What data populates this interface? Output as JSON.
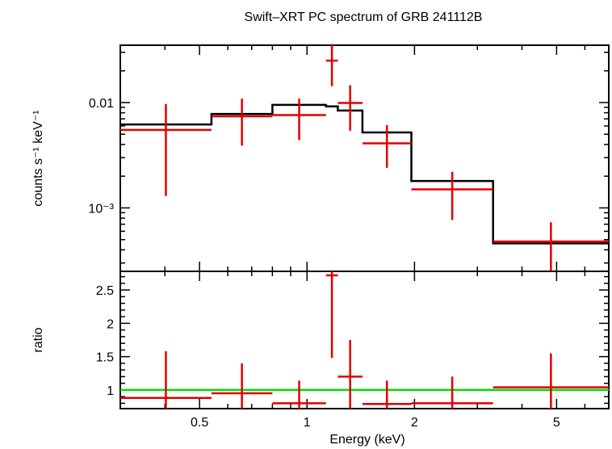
{
  "title": "Swift–XRT PC spectrum of GRB 241112B",
  "colors": {
    "data": "#e00000",
    "model": "#000000",
    "unity": "#00dd00",
    "axes": "#000000"
  },
  "chart_data": [
    {
      "type": "scatter",
      "panel": "spectrum",
      "xscale": "log",
      "yscale": "log",
      "xlim": [
        0.3,
        7.0
      ],
      "ylim": [
        0.00025,
        0.035
      ],
      "ylabel": "counts s⁻¹ keV⁻¹",
      "ytick_labels": [
        {
          "value": 0.01,
          "label": "0.01"
        },
        {
          "value": 0.001,
          "label": "10⁻³"
        }
      ],
      "data_series": {
        "name": "",
        "points": [
          {
            "xlo": 0.3,
            "xhi": 0.54,
            "y": 0.0055,
            "ylo": 0.0013,
            "yhi": 0.0097
          },
          {
            "xlo": 0.54,
            "xhi": 0.8,
            "y": 0.0074,
            "ylo": 0.0039,
            "yhi": 0.0109
          },
          {
            "xlo": 0.8,
            "xhi": 1.13,
            "y": 0.0076,
            "ylo": 0.0044,
            "yhi": 0.0109
          },
          {
            "xlo": 1.13,
            "xhi": 1.22,
            "y": 0.025,
            "ylo": 0.0143,
            "yhi": 0.035
          },
          {
            "xlo": 1.22,
            "xhi": 1.43,
            "y": 0.0099,
            "ylo": 0.0054,
            "yhi": 0.0146
          },
          {
            "xlo": 1.43,
            "xhi": 1.96,
            "y": 0.0041,
            "ylo": 0.0024,
            "yhi": 0.0061
          },
          {
            "xlo": 1.96,
            "xhi": 3.32,
            "y": 0.0015,
            "ylo": 0.00077,
            "yhi": 0.0022
          },
          {
            "xlo": 3.32,
            "xhi": 7.0,
            "y": 0.00048,
            "ylo": 0.00025,
            "yhi": 0.00073
          }
        ]
      },
      "model_series": {
        "name": "",
        "steps": [
          {
            "xlo": 0.3,
            "xhi": 0.54,
            "y": 0.0062
          },
          {
            "xlo": 0.54,
            "xhi": 0.8,
            "y": 0.0078
          },
          {
            "xlo": 0.8,
            "xhi": 1.13,
            "y": 0.0095
          },
          {
            "xlo": 1.13,
            "xhi": 1.22,
            "y": 0.0092
          },
          {
            "xlo": 1.22,
            "xhi": 1.43,
            "y": 0.0084
          },
          {
            "xlo": 1.43,
            "xhi": 1.96,
            "y": 0.0052
          },
          {
            "xlo": 1.96,
            "xhi": 3.32,
            "y": 0.0018
          },
          {
            "xlo": 3.32,
            "xhi": 7.0,
            "y": 0.00046
          }
        ]
      }
    },
    {
      "type": "scatter",
      "panel": "ratio",
      "xscale": "log",
      "xlim": [
        0.3,
        7.0
      ],
      "ylim": [
        0.72,
        2.78
      ],
      "xlabel": "Energy (keV)",
      "ylabel": "ratio",
      "reference_line": 1.0,
      "xtick_labels": [
        {
          "value": 0.5,
          "label": "0.5"
        },
        {
          "value": 1,
          "label": "1"
        },
        {
          "value": 2,
          "label": "2"
        },
        {
          "value": 5,
          "label": "5"
        }
      ],
      "ytick_labels": [
        {
          "value": 1,
          "label": "1"
        },
        {
          "value": 1.5,
          "label": "1.5"
        },
        {
          "value": 2,
          "label": "2"
        },
        {
          "value": 2.5,
          "label": "2.5"
        }
      ],
      "data_series": {
        "name": "",
        "points": [
          {
            "xlo": 0.3,
            "xhi": 0.54,
            "y": 0.88,
            "ylo": 0.15,
            "yhi": 1.58
          },
          {
            "xlo": 0.54,
            "xhi": 0.8,
            "y": 0.95,
            "ylo": 0.5,
            "yhi": 1.4
          },
          {
            "xlo": 0.8,
            "xhi": 1.13,
            "y": 0.8,
            "ylo": 0.46,
            "yhi": 1.14
          },
          {
            "xlo": 1.13,
            "xhi": 1.22,
            "y": 2.72,
            "ylo": 1.48,
            "yhi": 2.78
          },
          {
            "xlo": 1.22,
            "xhi": 1.43,
            "y": 1.2,
            "ylo": 0.64,
            "yhi": 1.75
          },
          {
            "xlo": 1.43,
            "xhi": 1.96,
            "y": 0.79,
            "ylo": 0.46,
            "yhi": 1.14
          },
          {
            "xlo": 1.96,
            "xhi": 3.32,
            "y": 0.8,
            "ylo": 0.41,
            "yhi": 1.2
          },
          {
            "xlo": 3.32,
            "xhi": 7.0,
            "y": 1.04,
            "ylo": 0.53,
            "yhi": 1.55
          }
        ]
      }
    }
  ]
}
